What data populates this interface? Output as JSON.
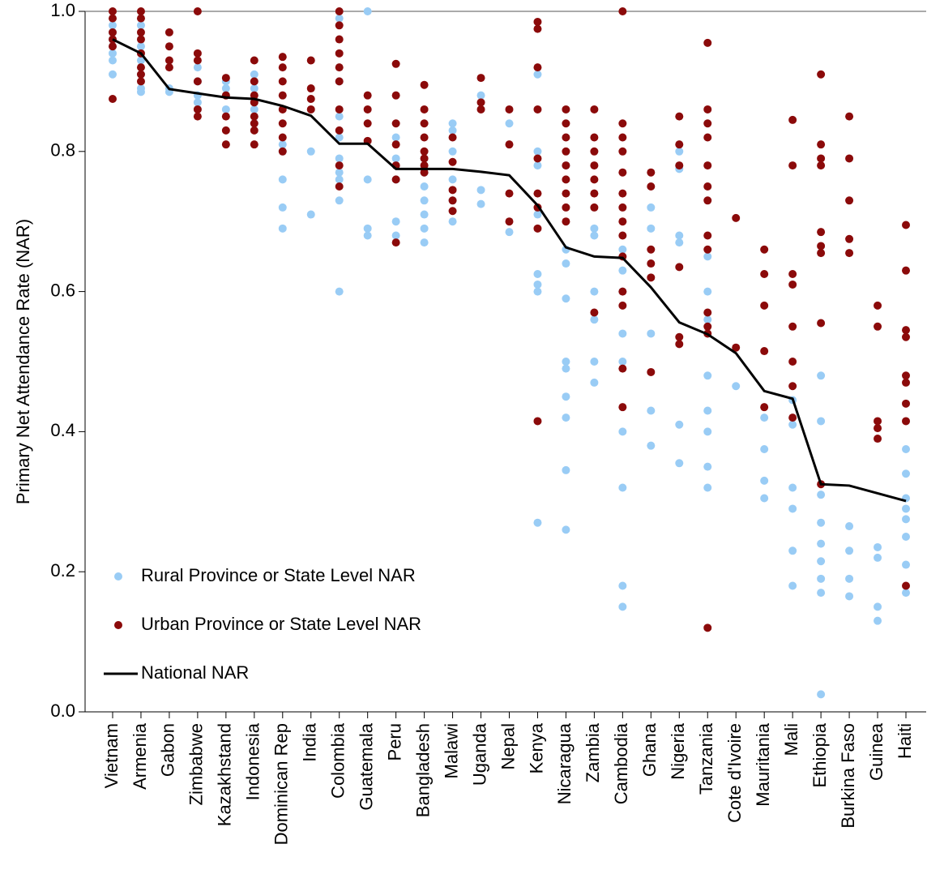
{
  "chart_data": {
    "type": "strip",
    "y_label": "Primary Net Attendance Rate (NAR)",
    "categories": [
      "Vietnam",
      "Armenia",
      "Gabon",
      "Zimbabwe",
      "Kazakhstand",
      "Indonesia",
      "Dominican Rep",
      "India",
      "Colombia",
      "Guatemala",
      "Peru",
      "Bangladesh",
      "Malawi",
      "Uganda",
      "Nepal",
      "Kenya",
      "Nicaragua",
      "Zambia",
      "Cambodia",
      "Ghana",
      "Nigeria",
      "Tanzania",
      "Cote d'Ivoire",
      "Mauritania",
      "Mali",
      "Ethiopia",
      "Burkina Faso",
      "Guinea",
      "Haiti"
    ],
    "ylim": [
      0,
      1
    ],
    "yticks": [
      {
        "value": 0,
        "label": "0.0"
      },
      0.2,
      0.4,
      0.6,
      0.8,
      {
        "value": 1,
        "label": "1.0"
      }
    ],
    "legend": "lower left",
    "series": [
      {
        "name": "Rural Province or State Level NAR",
        "kind": "points",
        "color": "#99ccf5",
        "values": [
          [
            0.98,
            0.97,
            0.96,
            0.95,
            0.94,
            0.93,
            0.91
          ],
          [
            0.98,
            0.95,
            0.93,
            0.91,
            0.89,
            0.885
          ],
          [
            0.89,
            0.885
          ],
          [
            0.92,
            0.9,
            0.88,
            0.87,
            0.86
          ],
          [
            0.9,
            0.89,
            0.88,
            0.86
          ],
          [
            0.91,
            0.9,
            0.89,
            0.87,
            0.86,
            0.85,
            0.84
          ],
          [
            0.81,
            0.8,
            0.76,
            0.72,
            0.69
          ],
          [
            0.8,
            0.71
          ],
          [
            0.99,
            0.9,
            0.85,
            0.82,
            0.79,
            0.77,
            0.76,
            0.73,
            0.6
          ],
          [
            1.0,
            0.76,
            0.69,
            0.68
          ],
          [
            0.82,
            0.79,
            0.76,
            0.7,
            0.68
          ],
          [
            0.79,
            0.77,
            0.75,
            0.73,
            0.71,
            0.69,
            0.67
          ],
          [
            0.84,
            0.83,
            0.8,
            0.76,
            0.73,
            0.7
          ],
          [
            0.88,
            0.745,
            0.725
          ],
          [
            0.84,
            0.685
          ],
          [
            0.91,
            0.8,
            0.78,
            0.71,
            0.625,
            0.61,
            0.6,
            0.27
          ],
          [
            0.78,
            0.66,
            0.64,
            0.59,
            0.5,
            0.49,
            0.45,
            0.42,
            0.345,
            0.26
          ],
          [
            0.69,
            0.68,
            0.6,
            0.56,
            0.5,
            0.47
          ],
          [
            0.66,
            0.63,
            0.6,
            0.54,
            0.5,
            0.4,
            0.32,
            0.18,
            0.15
          ],
          [
            0.72,
            0.69,
            0.54,
            0.43,
            0.38
          ],
          [
            0.8,
            0.775,
            0.68,
            0.67,
            0.41,
            0.355
          ],
          [
            0.65,
            0.6,
            0.56,
            0.48,
            0.43,
            0.4,
            0.35,
            0.32
          ],
          [
            0.465
          ],
          [
            0.42,
            0.375,
            0.33,
            0.305
          ],
          [
            0.445,
            0.41,
            0.32,
            0.29,
            0.23,
            0.18
          ],
          [
            0.48,
            0.415,
            0.31,
            0.27,
            0.24,
            0.215,
            0.19,
            0.17,
            0.025
          ],
          [
            0.265,
            0.23,
            0.19,
            0.165
          ],
          [
            0.235,
            0.22,
            0.15,
            0.13
          ],
          [
            0.375,
            0.34,
            0.305,
            0.29,
            0.275,
            0.25,
            0.21,
            0.17
          ]
        ]
      },
      {
        "name": "Urban Province or State Level NAR",
        "kind": "points",
        "color": "#8b0a0a",
        "values": [
          [
            1.0,
            0.99,
            0.97,
            0.96,
            0.95,
            0.875
          ],
          [
            1.0,
            0.99,
            0.97,
            0.96,
            0.94,
            0.92,
            0.91,
            0.9
          ],
          [
            0.97,
            0.95,
            0.93,
            0.92
          ],
          [
            1.0,
            0.94,
            0.93,
            0.9,
            0.86,
            0.85
          ],
          [
            0.905,
            0.88,
            0.85,
            0.83,
            0.81
          ],
          [
            0.93,
            0.9,
            0.88,
            0.87,
            0.85,
            0.84,
            0.83,
            0.81
          ],
          [
            0.935,
            0.92,
            0.9,
            0.88,
            0.86,
            0.84,
            0.82,
            0.8
          ],
          [
            0.93,
            0.89,
            0.875,
            0.86
          ],
          [
            1.0,
            0.98,
            0.96,
            0.94,
            0.92,
            0.9,
            0.86,
            0.83,
            0.78,
            0.75
          ],
          [
            0.88,
            0.86,
            0.84,
            0.815
          ],
          [
            0.925,
            0.88,
            0.84,
            0.81,
            0.78,
            0.76,
            0.67
          ],
          [
            0.895,
            0.86,
            0.84,
            0.82,
            0.8,
            0.79,
            0.78,
            0.77
          ],
          [
            0.82,
            0.785,
            0.745,
            0.73,
            0.715
          ],
          [
            0.905,
            0.87,
            0.86
          ],
          [
            0.86,
            0.81,
            0.74,
            0.7
          ],
          [
            0.985,
            0.975,
            0.92,
            0.86,
            0.79,
            0.74,
            0.72,
            0.69,
            0.415
          ],
          [
            0.86,
            0.84,
            0.82,
            0.8,
            0.78,
            0.76,
            0.74,
            0.72,
            0.7
          ],
          [
            0.86,
            0.82,
            0.8,
            0.78,
            0.76,
            0.74,
            0.72,
            0.57
          ],
          [
            1.0,
            0.84,
            0.82,
            0.8,
            0.77,
            0.74,
            0.72,
            0.7,
            0.68,
            0.65,
            0.6,
            0.58,
            0.49,
            0.435
          ],
          [
            0.77,
            0.75,
            0.66,
            0.64,
            0.62,
            0.485
          ],
          [
            0.85,
            0.81,
            0.78,
            0.635,
            0.535,
            0.525
          ],
          [
            0.955,
            0.86,
            0.84,
            0.82,
            0.78,
            0.75,
            0.73,
            0.68,
            0.66,
            0.57,
            0.55,
            0.54,
            0.12
          ],
          [
            0.705,
            0.52
          ],
          [
            0.66,
            0.625,
            0.58,
            0.515,
            0.435
          ],
          [
            0.845,
            0.78,
            0.625,
            0.61,
            0.55,
            0.5,
            0.465,
            0.42
          ],
          [
            0.91,
            0.81,
            0.79,
            0.78,
            0.685,
            0.665,
            0.655,
            0.555,
            0.325
          ],
          [
            0.85,
            0.79,
            0.73,
            0.675,
            0.655
          ],
          [
            0.58,
            0.55,
            0.415,
            0.405,
            0.39
          ],
          [
            0.695,
            0.63,
            0.545,
            0.535,
            0.48,
            0.47,
            0.44,
            0.415,
            0.18
          ]
        ]
      },
      {
        "name": "National NAR",
        "kind": "line",
        "color": "#000000",
        "values": [
          0.96,
          0.94,
          0.889,
          0.883,
          0.877,
          0.875,
          0.865,
          0.851,
          0.811,
          0.811,
          0.775,
          0.775,
          0.775,
          0.771,
          0.766,
          0.723,
          0.663,
          0.65,
          0.648,
          0.606,
          0.556,
          0.539,
          0.512,
          0.458,
          0.447,
          0.325,
          0.323,
          0.312,
          0.301
        ]
      }
    ]
  }
}
